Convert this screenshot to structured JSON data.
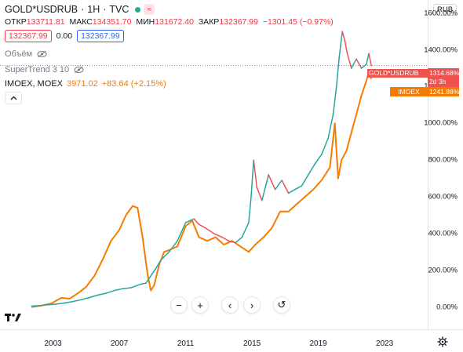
{
  "header": {
    "symbol": "GOLD*USDRUB",
    "interval": "1H",
    "source": "TVC",
    "pill_glyph": "≈"
  },
  "ohlc": {
    "open_label": "ОТКР",
    "open": "133711.81",
    "high_label": "МАКС",
    "high": "134351.70",
    "low_label": "МИН",
    "low": "131672.40",
    "close_label": "ЗАКР",
    "close": "132367.99",
    "change": "−1301.45 (−0.97%)"
  },
  "price_boxes": {
    "sell": "132367.99",
    "spread": "0.00",
    "buy": "132367.99"
  },
  "indicators": {
    "volume": "Объём",
    "supertrend": "SuperTrend 3 10"
  },
  "compare": {
    "symbol": "IMOEX, MOEX",
    "value": "3971.02",
    "change": "+83.64 (+2.15%)"
  },
  "price_scale": {
    "currency": "RUB",
    "gold_label": "GOLD*USDRUB",
    "gold_value": "1314.68%",
    "gold_countdown": "2d 3h",
    "imoex_label": "IMOEX",
    "imoex_value": "1241.88%"
  },
  "controls": {
    "zoom_out": "−",
    "zoom_in": "+",
    "scroll_left": "‹",
    "scroll_right": "›",
    "reset": "↺"
  },
  "colors": {
    "gold_up": "#26a69a",
    "gold_down": "#ef5350",
    "imoex": "#f57c00",
    "grid": "#f0f3fa",
    "price_line": "#ef5350"
  },
  "chart_data": {
    "type": "line",
    "y_axis": {
      "unit": "%",
      "ticks": [
        "1600.00%",
        "1400.00%",
        "1200.00%",
        "1000.00%",
        "800.00%",
        "600.00%",
        "400.00%",
        "200.00%",
        "0.00%"
      ],
      "ylim": [
        -10,
        1620
      ]
    },
    "x_axis": {
      "ticks": [
        "2003",
        "2007",
        "2011",
        "2015",
        "2019",
        "2023"
      ],
      "xlim": [
        1999.8,
        2025.6
      ]
    },
    "grid": false,
    "series": [
      {
        "name": "GOLD*USDRUB",
        "x": [
          2001.7,
          2002.2,
          2002.7,
          2003.2,
          2003.7,
          2004.2,
          2004.7,
          2005.2,
          2005.7,
          2006.2,
          2006.7,
          2007.2,
          2007.7,
          2008.0,
          2008.3,
          2008.6,
          2008.9,
          2009.2,
          2009.5,
          2010.0,
          2010.5,
          2011.0,
          2011.5,
          2011.8,
          2012.2,
          2012.7,
          2013.2,
          2013.6,
          2014.0,
          2014.4,
          2014.8,
          2014.95,
          2015.1,
          2015.3,
          2015.6,
          2016.0,
          2016.4,
          2016.8,
          2017.2,
          2017.6,
          2018.0,
          2018.4,
          2018.8,
          2019.2,
          2019.6,
          2019.9,
          2020.1,
          2020.25,
          2020.45,
          2020.6,
          2020.75,
          2021.0,
          2021.3,
          2021.6,
          2021.9,
          2022.05,
          2022.2
        ],
        "y": [
          5,
          8,
          12,
          16,
          22,
          30,
          40,
          52,
          65,
          75,
          90,
          100,
          105,
          115,
          125,
          130,
          170,
          210,
          255,
          300,
          360,
          460,
          480,
          450,
          430,
          400,
          380,
          360,
          350,
          380,
          460,
          600,
          800,
          650,
          580,
          720,
          640,
          690,
          620,
          640,
          660,
          720,
          780,
          830,
          920,
          1050,
          1200,
          1350,
          1500,
          1450,
          1380,
          1300,
          1350,
          1300,
          1320,
          1380,
          1314.68
        ]
      },
      {
        "name": "IMOEX",
        "x": [
          2001.7,
          2002.3,
          2002.9,
          2003.5,
          2004.0,
          2004.5,
          2005.0,
          2005.5,
          2006.0,
          2006.5,
          2007.0,
          2007.4,
          2007.8,
          2008.1,
          2008.4,
          2008.7,
          2008.9,
          2009.1,
          2009.4,
          2009.7,
          2010.0,
          2010.5,
          2011.0,
          2011.4,
          2011.8,
          2012.3,
          2012.8,
          2013.3,
          2013.8,
          2014.3,
          2014.8,
          2015.2,
          2015.7,
          2016.2,
          2016.7,
          2017.2,
          2017.7,
          2018.2,
          2018.7,
          2019.2,
          2019.7,
          2020.0,
          2020.2,
          2020.4,
          2020.7,
          2021.0,
          2021.3,
          2021.6,
          2021.9,
          2022.05,
          2022.2
        ],
        "y": [
          0,
          8,
          20,
          50,
          45,
          75,
          110,
          170,
          260,
          360,
          420,
          500,
          550,
          540,
          380,
          180,
          90,
          120,
          230,
          300,
          310,
          330,
          440,
          470,
          380,
          360,
          380,
          340,
          360,
          330,
          300,
          340,
          380,
          430,
          520,
          520,
          560,
          600,
          640,
          690,
          760,
          1000,
          700,
          800,
          850,
          950,
          1050,
          1150,
          1230,
          1280,
          1241.88
        ]
      }
    ]
  }
}
